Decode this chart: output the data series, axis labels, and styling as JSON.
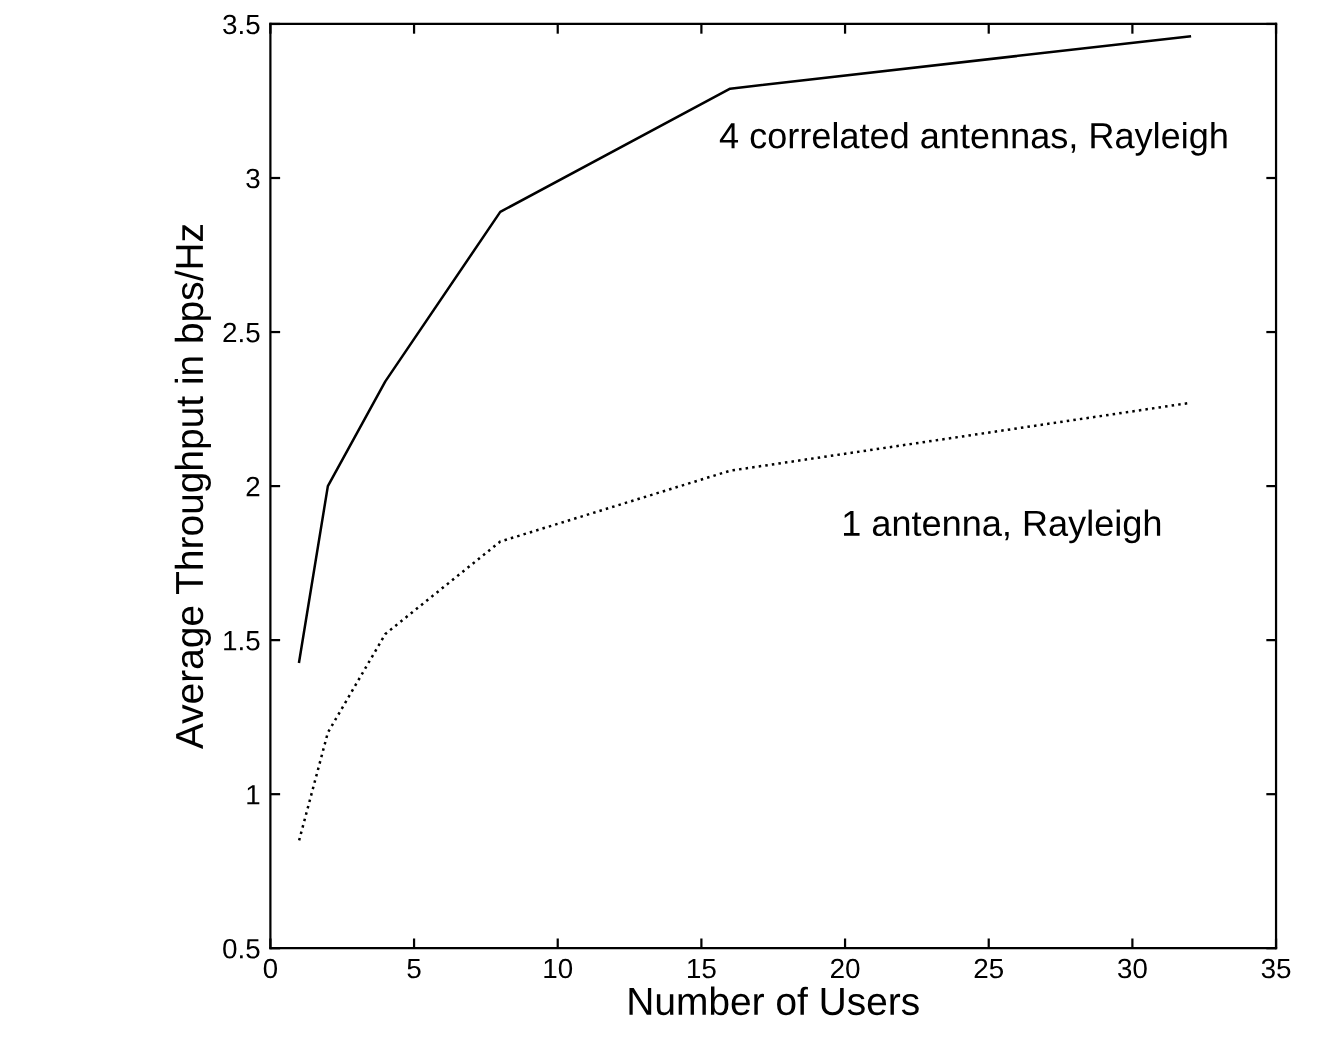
{
  "chart_data": {
    "type": "line",
    "xlabel": "Number of Users",
    "ylabel": "Average Throughput in bps/Hz",
    "x": [
      1,
      2,
      4,
      8,
      16,
      32
    ],
    "series": [
      {
        "name": "4 correlated antennas, Rayleigh",
        "color": "#000000",
        "line_style": "solid",
        "values": [
          1.43,
          2.0,
          2.34,
          2.89,
          3.29,
          3.46
        ]
      },
      {
        "name": "1 antenna, Rayleigh",
        "color": "#000000",
        "line_style": "dotted",
        "values": [
          0.85,
          1.2,
          1.52,
          1.82,
          2.05,
          2.27
        ]
      }
    ],
    "xlim": [
      0,
      35
    ],
    "xticks": [
      0,
      5,
      10,
      15,
      20,
      25,
      30,
      35
    ],
    "ylim": [
      0.5,
      3.5
    ],
    "yticks": [
      0.5,
      1,
      1.5,
      2,
      2.5,
      3,
      3.5
    ],
    "grid": false,
    "legend": false,
    "marker": "none"
  }
}
